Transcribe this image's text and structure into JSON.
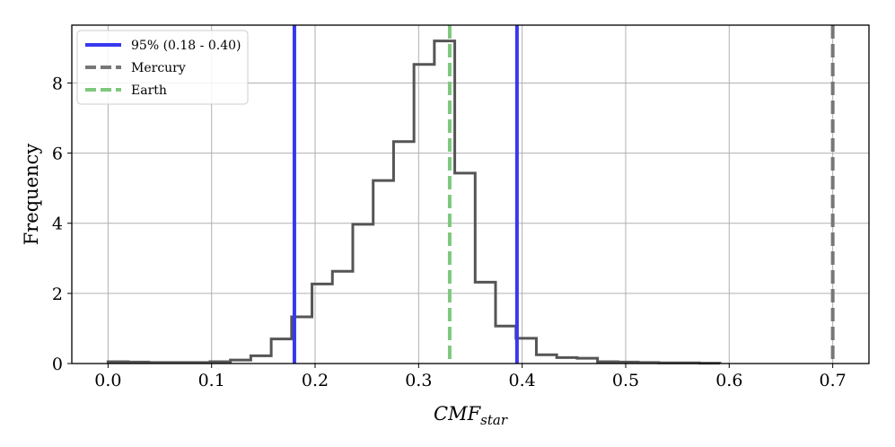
{
  "chart_data": {
    "type": "histogram",
    "xlabel_base": "CMF",
    "xlabel_sub": "star",
    "ylabel": "Frequency",
    "xlim": [
      -0.035,
      0.735
    ],
    "ylim": [
      0,
      9.65
    ],
    "grid": true,
    "legend_position": "top-left",
    "xticks": [
      0.0,
      0.1,
      0.2,
      0.3,
      0.4,
      0.5,
      0.6,
      0.7
    ],
    "xtick_labels": [
      "0.0",
      "0.1",
      "0.2",
      "0.3",
      "0.4",
      "0.5",
      "0.6",
      "0.7"
    ],
    "yticks": [
      0,
      2,
      4,
      6,
      8
    ],
    "ytick_labels": [
      "0",
      "2",
      "4",
      "6",
      "8"
    ],
    "histogram": {
      "color": "#555555",
      "bin_edges": [
        0.0,
        0.0197,
        0.0394,
        0.0591,
        0.0788,
        0.0985,
        0.1182,
        0.1379,
        0.1576,
        0.1773,
        0.197,
        0.2167,
        0.2364,
        0.2561,
        0.2758,
        0.2955,
        0.3152,
        0.3349,
        0.3546,
        0.3743,
        0.394,
        0.4137,
        0.4334,
        0.4531,
        0.4728,
        0.4925,
        0.5122,
        0.5319,
        0.5516,
        0.5713,
        0.591
      ],
      "values": [
        0.05,
        0.04,
        0.03,
        0.03,
        0.03,
        0.05,
        0.1,
        0.22,
        0.7,
        1.33,
        2.27,
        2.63,
        3.97,
        5.22,
        6.33,
        8.53,
        9.2,
        5.43,
        2.32,
        1.07,
        0.72,
        0.25,
        0.17,
        0.15,
        0.05,
        0.04,
        0.03,
        0.02,
        0.02,
        0.01
      ]
    },
    "vlines": [
      {
        "name": "95% (0.18 - 0.40)",
        "x": [
          0.18,
          0.395
        ],
        "color": "#3838f0",
        "style": "solid"
      },
      {
        "name": "Mercury",
        "x": [
          0.7
        ],
        "color": "#777777",
        "style": "dashed"
      },
      {
        "name": "Earth",
        "x": [
          0.33
        ],
        "color": "#7ec87e",
        "style": "dashed"
      }
    ]
  }
}
